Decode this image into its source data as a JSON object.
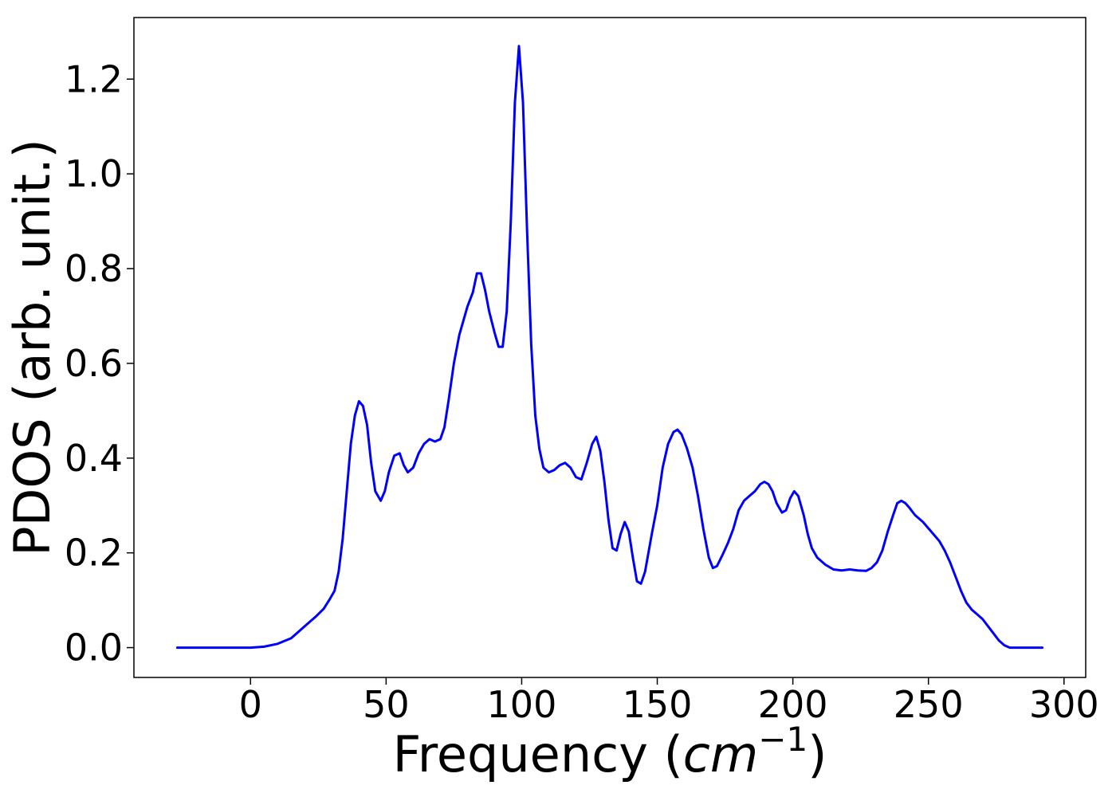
{
  "chart_data": {
    "type": "line",
    "title": "",
    "xlabel_parts": {
      "pre": "Frequency (",
      "italic": "cm",
      "sup": "−1",
      "post": ")"
    },
    "ylabel": "PDOS (arb. unit.)",
    "xlim": [
      -43,
      308
    ],
    "ylim": [
      -0.063,
      1.33
    ],
    "x_ticks": [
      0,
      50,
      100,
      150,
      200,
      250,
      300
    ],
    "x_tick_labels": [
      "0",
      "50",
      "100",
      "150",
      "200",
      "250",
      "300"
    ],
    "y_ticks": [
      0.0,
      0.2,
      0.4,
      0.6,
      0.8,
      1.0,
      1.2
    ],
    "y_tick_labels": [
      "0.0",
      "0.2",
      "0.4",
      "0.6",
      "0.8",
      "1.0",
      "1.2"
    ],
    "grid": false,
    "legend": "none",
    "series": [
      {
        "color": "#0000ff",
        "points": [
          [
            -27,
            0.0
          ],
          [
            -10,
            0.0
          ],
          [
            0,
            0.0
          ],
          [
            5,
            0.002
          ],
          [
            10,
            0.008
          ],
          [
            15,
            0.02
          ],
          [
            18,
            0.035
          ],
          [
            21,
            0.05
          ],
          [
            24,
            0.065
          ],
          [
            27,
            0.082
          ],
          [
            29,
            0.1
          ],
          [
            31,
            0.12
          ],
          [
            32.5,
            0.16
          ],
          [
            34,
            0.23
          ],
          [
            35.5,
            0.33
          ],
          [
            37,
            0.43
          ],
          [
            38.5,
            0.49
          ],
          [
            40,
            0.52
          ],
          [
            41.5,
            0.51
          ],
          [
            43,
            0.47
          ],
          [
            44.5,
            0.39
          ],
          [
            46,
            0.33
          ],
          [
            48,
            0.31
          ],
          [
            49.5,
            0.33
          ],
          [
            51,
            0.37
          ],
          [
            53,
            0.405
          ],
          [
            55,
            0.41
          ],
          [
            56.5,
            0.385
          ],
          [
            58,
            0.37
          ],
          [
            60,
            0.38
          ],
          [
            62,
            0.41
          ],
          [
            64,
            0.43
          ],
          [
            66,
            0.44
          ],
          [
            68,
            0.435
          ],
          [
            70,
            0.44
          ],
          [
            71.5,
            0.465
          ],
          [
            73,
            0.52
          ],
          [
            75,
            0.6
          ],
          [
            77,
            0.66
          ],
          [
            78.5,
            0.69
          ],
          [
            80,
            0.72
          ],
          [
            82,
            0.75
          ],
          [
            83.5,
            0.79
          ],
          [
            85,
            0.79
          ],
          [
            86.5,
            0.755
          ],
          [
            88,
            0.71
          ],
          [
            90,
            0.665
          ],
          [
            91.5,
            0.635
          ],
          [
            93,
            0.635
          ],
          [
            94.5,
            0.71
          ],
          [
            96,
            0.9
          ],
          [
            97.5,
            1.15
          ],
          [
            99,
            1.27
          ],
          [
            100.5,
            1.15
          ],
          [
            102,
            0.88
          ],
          [
            103.5,
            0.64
          ],
          [
            105,
            0.49
          ],
          [
            106.5,
            0.42
          ],
          [
            108,
            0.38
          ],
          [
            110,
            0.37
          ],
          [
            112,
            0.375
          ],
          [
            114,
            0.385
          ],
          [
            116,
            0.39
          ],
          [
            118,
            0.38
          ],
          [
            120,
            0.36
          ],
          [
            122,
            0.355
          ],
          [
            124,
            0.39
          ],
          [
            126,
            0.43
          ],
          [
            127.5,
            0.445
          ],
          [
            129,
            0.415
          ],
          [
            130.5,
            0.35
          ],
          [
            132,
            0.27
          ],
          [
            133.5,
            0.21
          ],
          [
            135,
            0.205
          ],
          [
            136.5,
            0.24
          ],
          [
            138,
            0.265
          ],
          [
            139.5,
            0.245
          ],
          [
            141,
            0.19
          ],
          [
            142.5,
            0.14
          ],
          [
            144,
            0.135
          ],
          [
            145.5,
            0.16
          ],
          [
            148,
            0.24
          ],
          [
            150,
            0.3
          ],
          [
            152,
            0.38
          ],
          [
            154,
            0.43
          ],
          [
            156,
            0.455
          ],
          [
            157.5,
            0.46
          ],
          [
            159,
            0.45
          ],
          [
            161,
            0.42
          ],
          [
            163,
            0.38
          ],
          [
            165,
            0.32
          ],
          [
            167,
            0.25
          ],
          [
            169,
            0.19
          ],
          [
            170.5,
            0.168
          ],
          [
            172,
            0.172
          ],
          [
            174,
            0.195
          ],
          [
            176,
            0.22
          ],
          [
            178,
            0.25
          ],
          [
            180,
            0.29
          ],
          [
            182,
            0.31
          ],
          [
            184,
            0.32
          ],
          [
            186,
            0.33
          ],
          [
            188,
            0.345
          ],
          [
            189.5,
            0.35
          ],
          [
            191,
            0.345
          ],
          [
            192.5,
            0.33
          ],
          [
            194,
            0.305
          ],
          [
            196,
            0.285
          ],
          [
            197.5,
            0.29
          ],
          [
            199,
            0.315
          ],
          [
            200.5,
            0.33
          ],
          [
            202,
            0.32
          ],
          [
            204,
            0.28
          ],
          [
            205.5,
            0.24
          ],
          [
            207,
            0.21
          ],
          [
            209,
            0.19
          ],
          [
            212,
            0.175
          ],
          [
            215,
            0.165
          ],
          [
            218,
            0.163
          ],
          [
            221,
            0.165
          ],
          [
            224,
            0.163
          ],
          [
            227,
            0.162
          ],
          [
            229,
            0.168
          ],
          [
            231,
            0.18
          ],
          [
            233,
            0.205
          ],
          [
            235,
            0.245
          ],
          [
            237,
            0.28
          ],
          [
            238.5,
            0.305
          ],
          [
            240,
            0.31
          ],
          [
            241.5,
            0.305
          ],
          [
            243,
            0.295
          ],
          [
            245,
            0.28
          ],
          [
            248,
            0.265
          ],
          [
            251,
            0.245
          ],
          [
            254,
            0.225
          ],
          [
            256,
            0.205
          ],
          [
            258,
            0.18
          ],
          [
            260,
            0.15
          ],
          [
            262,
            0.12
          ],
          [
            264,
            0.095
          ],
          [
            266,
            0.08
          ],
          [
            268,
            0.07
          ],
          [
            270,
            0.06
          ],
          [
            272,
            0.045
          ],
          [
            274,
            0.03
          ],
          [
            276,
            0.015
          ],
          [
            278,
            0.005
          ],
          [
            280,
            0.0
          ],
          [
            285,
            0.0
          ],
          [
            292,
            0.0
          ]
        ]
      }
    ]
  }
}
